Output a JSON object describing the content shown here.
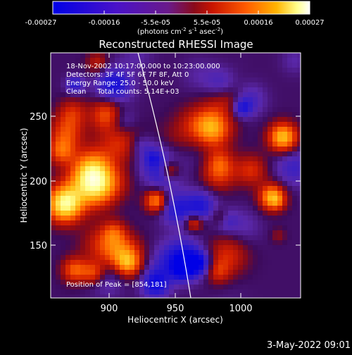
{
  "colorbar": {
    "tick_labels": [
      "-0.00027",
      "-0.00016",
      "-5.5e-05",
      "5.5e-05",
      "0.00016",
      "0.00027"
    ],
    "units": "(photons cm",
    "units_exp1": "-2",
    "units_mid": " s",
    "units_exp2": "-1",
    "units_end": " asec",
    "units_exp3": "-2",
    "units_close": ")",
    "colormap": "blue-purple-red-yellow-white",
    "range": [
      -0.00027,
      0.00027
    ]
  },
  "image": {
    "title": "Reconstructed RHESSI Image",
    "info_lines": [
      "18-Nov-2002 10:17:00.000 to 10:23:00.000",
      "Detectors: 3F 4F 5F 6F 7F 8F, Att 0",
      "Energy Range: 25.0 - 50.0 keV",
      "Clean     Total counts: 5.14E+03"
    ],
    "peak_label": "Position of Peak = [854,181]",
    "limb_color": "#ffffff"
  },
  "axes": {
    "xlabel": "Heliocentric X (arcsec)",
    "ylabel": "Heliocentric Y (arcsec)",
    "x_ticks": [
      "900",
      "950",
      "1000"
    ],
    "y_ticks": [
      "150",
      "200",
      "250"
    ]
  },
  "footer": {
    "timestamp": "3-May-2022 09:01"
  },
  "colors": {
    "background": "#000000",
    "foreground": "#ffffff"
  }
}
